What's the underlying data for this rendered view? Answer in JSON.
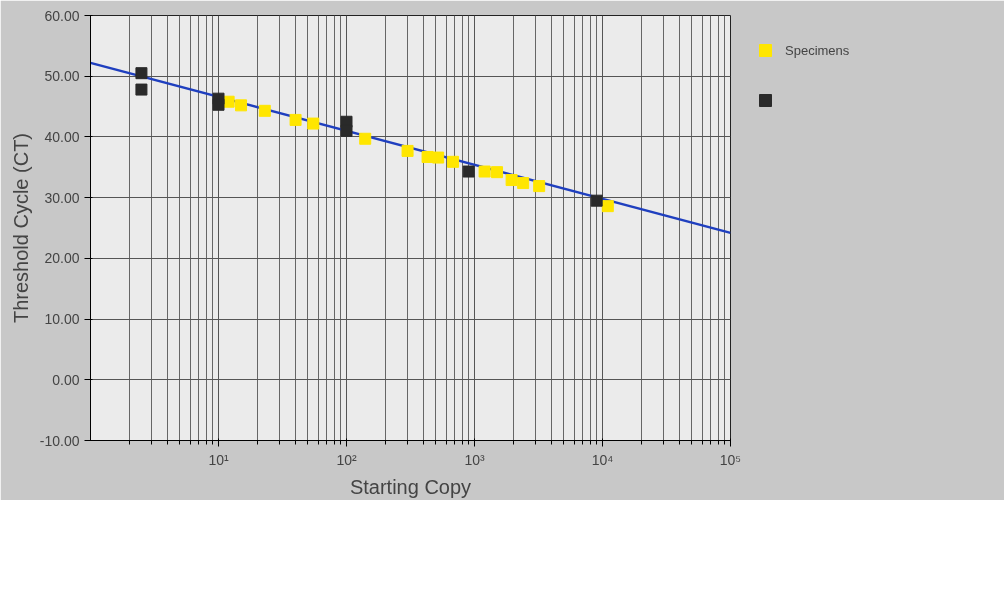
{
  "chart_data": {
    "type": "scatter",
    "xlabel": "Starting Copy",
    "ylabel": "Threshold Cycle (CT)",
    "log": "x",
    "grid": true,
    "legend": "right",
    "marker": "square",
    "xlim": [
      1,
      100000
    ],
    "ylim": [
      -10,
      60
    ],
    "xticks": [
      {
        "value": 10,
        "label": "10¹"
      },
      {
        "value": 100,
        "label": "10²"
      },
      {
        "value": 1000,
        "label": "10³"
      },
      {
        "value": 10000,
        "label": "10⁴"
      },
      {
        "value": 100000,
        "label": "10⁵"
      }
    ],
    "yticks": [
      {
        "value": -10,
        "label": "-10.00"
      },
      {
        "value": 0,
        "label": "0.00"
      },
      {
        "value": 10,
        "label": "10.00"
      },
      {
        "value": 20,
        "label": "20.00"
      },
      {
        "value": 30,
        "label": "30.00"
      },
      {
        "value": 40,
        "label": "40.00"
      },
      {
        "value": 50,
        "label": "50.00"
      },
      {
        "value": 60,
        "label": "60.00"
      }
    ],
    "series": [
      {
        "type": "line",
        "marker": "none",
        "color": "#1f3fbf",
        "x": [
          1,
          100000
        ],
        "values": [
          52.2,
          24.2
        ]
      },
      {
        "name": "Specimens",
        "color": "#ffe600",
        "x": [
          12,
          15,
          23,
          40,
          55,
          140,
          300,
          430,
          520,
          680,
          1200,
          1500,
          1950,
          2400,
          3200,
          11000
        ],
        "values": [
          45.8,
          45.2,
          44.3,
          42.8,
          42.2,
          39.7,
          37.7,
          36.7,
          36.6,
          35.9,
          34.3,
          34.2,
          32.9,
          32.4,
          31.9,
          28.6
        ]
      },
      {
        "color": "#2a2a2a",
        "x": [
          2.5,
          2.5,
          10,
          10,
          100,
          100,
          900,
          9000
        ],
        "values": [
          50.5,
          47.8,
          46.3,
          45.3,
          42.5,
          41.0,
          34.3,
          29.5
        ]
      }
    ]
  }
}
